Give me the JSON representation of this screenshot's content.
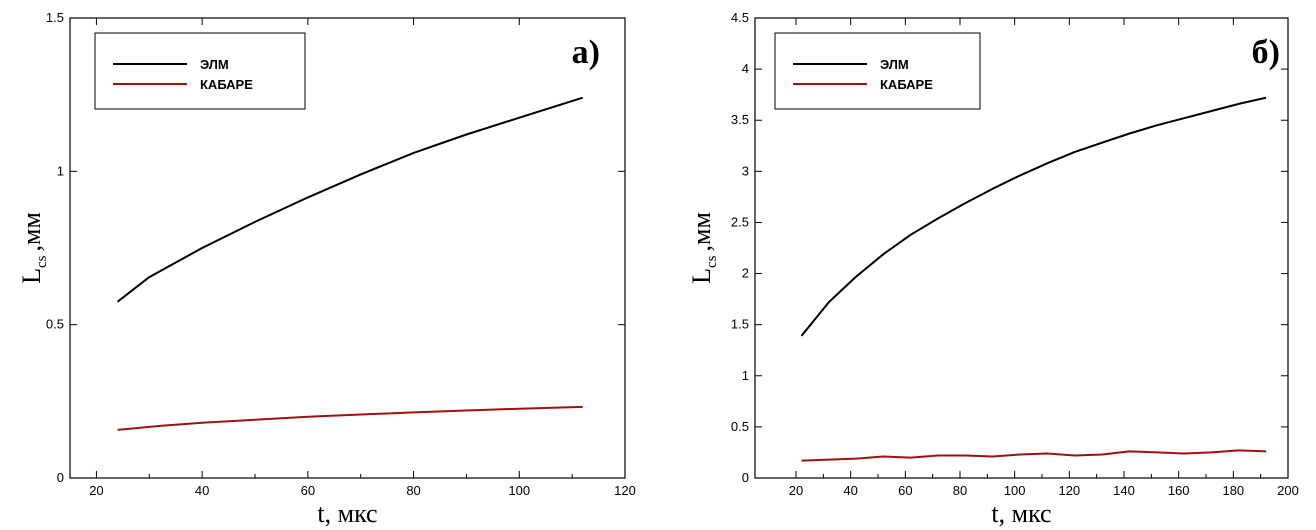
{
  "chart_data": [
    {
      "type": "line",
      "panel_label": "а)",
      "xlabel": "t, мкс",
      "ylabel_main": "L",
      "ylabel_sub": "cs",
      "ylabel_unit": ",мм",
      "xlim": [
        15,
        120
      ],
      "ylim": [
        0,
        1.5
      ],
      "xticks": [
        20,
        40,
        60,
        80,
        100,
        120
      ],
      "yticks": [
        0,
        0.5,
        1,
        1.5
      ],
      "legend_position": "top-left",
      "series": [
        {
          "name": "ЭЛМ",
          "color": "#000000",
          "x": [
            24,
            30,
            40,
            50,
            60,
            70,
            80,
            90,
            100,
            112
          ],
          "y": [
            0.575,
            0.655,
            0.75,
            0.835,
            0.915,
            0.99,
            1.06,
            1.12,
            1.175,
            1.24
          ]
        },
        {
          "name": "КАБАРЕ",
          "color": "#a01010",
          "x": [
            24,
            32,
            40,
            50,
            60,
            70,
            80,
            90,
            100,
            112
          ],
          "y": [
            0.157,
            0.17,
            0.18,
            0.19,
            0.2,
            0.207,
            0.214,
            0.22,
            0.226,
            0.232
          ]
        }
      ]
    },
    {
      "type": "line",
      "panel_label": "б)",
      "xlabel": "t, мкс",
      "ylabel_main": "L",
      "ylabel_sub": "cs",
      "ylabel_unit": ",мм",
      "xlim": [
        5,
        200
      ],
      "ylim": [
        0,
        4.5
      ],
      "xticks": [
        20,
        40,
        60,
        80,
        100,
        120,
        140,
        160,
        180,
        200
      ],
      "yticks": [
        0,
        0.5,
        1,
        1.5,
        2,
        2.5,
        3,
        3.5,
        4,
        4.5
      ],
      "legend_position": "top-left",
      "series": [
        {
          "name": "ЭЛМ",
          "color": "#000000",
          "x": [
            22,
            32,
            42,
            52,
            62,
            72,
            82,
            92,
            102,
            112,
            122,
            132,
            142,
            152,
            162,
            172,
            182,
            192
          ],
          "y": [
            1.39,
            1.72,
            1.97,
            2.19,
            2.38,
            2.54,
            2.69,
            2.83,
            2.96,
            3.08,
            3.19,
            3.28,
            3.37,
            3.45,
            3.52,
            3.59,
            3.66,
            3.72
          ]
        },
        {
          "name": "КАБАРЕ",
          "color": "#a01010",
          "x": [
            22,
            32,
            42,
            52,
            62,
            72,
            82,
            92,
            102,
            112,
            122,
            132,
            142,
            152,
            162,
            172,
            182,
            192
          ],
          "y": [
            0.17,
            0.18,
            0.19,
            0.21,
            0.2,
            0.22,
            0.22,
            0.21,
            0.23,
            0.24,
            0.22,
            0.23,
            0.26,
            0.25,
            0.24,
            0.25,
            0.27,
            0.26
          ]
        }
      ]
    }
  ]
}
